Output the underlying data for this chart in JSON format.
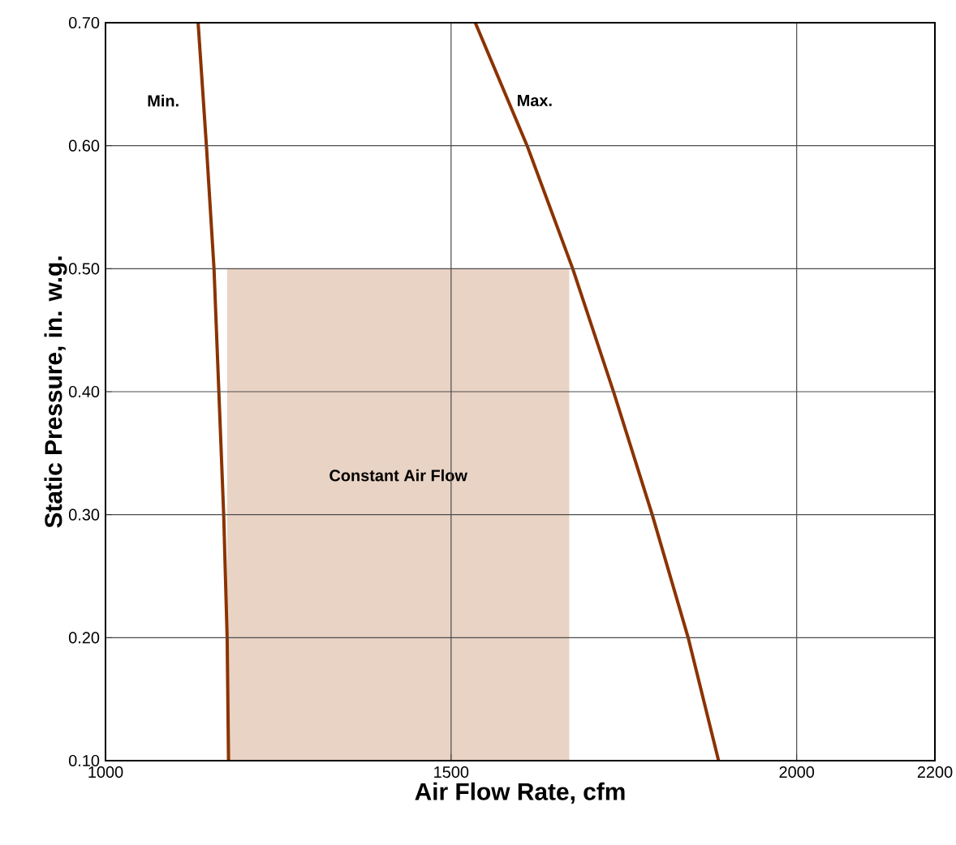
{
  "chart_data": {
    "type": "line",
    "xlabel": "Air Flow Rate, cfm",
    "ylabel": "Static Pressure, in. w.g.",
    "xlim": [
      1000,
      2200
    ],
    "ylim": [
      0.1,
      0.7
    ],
    "xticks": [
      1000,
      1500,
      2000,
      2200
    ],
    "yticks": [
      {
        "value": 0.1,
        "label": "0.10"
      },
      {
        "value": 0.2,
        "label": "0.20"
      },
      {
        "value": 0.3,
        "label": "0.30"
      },
      {
        "value": 0.4,
        "label": "0.40"
      },
      {
        "value": 0.5,
        "label": "0.50"
      },
      {
        "value": 0.6,
        "label": "0.60"
      },
      {
        "value": 0.7,
        "label": "0.70"
      }
    ],
    "grid": true,
    "legend": false,
    "marker": "none",
    "line_style": "solid",
    "series": [
      {
        "type": "area",
        "name": "Constant Air Flow",
        "color": "#e9d3c4",
        "x": [
          1176,
          1671
        ],
        "values": [
          0.5,
          0.5
        ]
      },
      {
        "name": "Min.",
        "color": "#8b3300",
        "x": [
          1178,
          1176,
          1171,
          1164,
          1157,
          1146,
          1134
        ],
        "values": [
          0.1,
          0.2,
          0.3,
          0.4,
          0.5,
          0.6,
          0.7
        ]
      },
      {
        "name": "Max.",
        "color": "#8b3300",
        "x": [
          1887,
          1843,
          1791,
          1735,
          1676,
          1610,
          1535
        ],
        "values": [
          0.1,
          0.2,
          0.3,
          0.4,
          0.5,
          0.6,
          0.7
        ]
      }
    ]
  }
}
